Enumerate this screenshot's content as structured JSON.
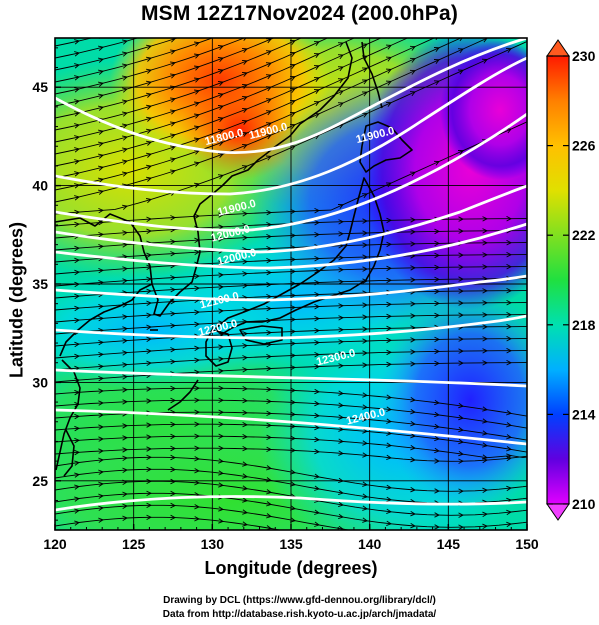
{
  "title": "MSM 12Z17Nov2024 (200.0hPa)",
  "axes": {
    "xlabel": "Longitude (degrees)",
    "ylabel": "Latitude  (degrees)",
    "xlim": [
      120,
      150
    ],
    "ylim": [
      22.5,
      47.5
    ],
    "xticks": [
      "120",
      "125",
      "130",
      "135",
      "140",
      "145",
      "150"
    ],
    "yticks": [
      "25",
      "30",
      "35",
      "40",
      "45"
    ]
  },
  "colorbar": {
    "min": 210,
    "max": 230,
    "labels": [
      "230",
      "226",
      "222",
      "218",
      "214",
      "210"
    ]
  },
  "contour_labels": [
    {
      "text": "11800.0",
      "lon": 130.8,
      "lat": 42.3
    },
    {
      "text": "11900.0",
      "lon": 133.6,
      "lat": 42.6
    },
    {
      "text": "11900.0",
      "lon": 131.6,
      "lat": 38.7
    },
    {
      "text": "11900.0",
      "lon": 140.4,
      "lat": 42.4
    },
    {
      "text": "12000.0",
      "lon": 131.2,
      "lat": 37.4
    },
    {
      "text": "12000.0",
      "lon": 131.6,
      "lat": 36.2
    },
    {
      "text": "12100.0",
      "lon": 130.5,
      "lat": 34.0
    },
    {
      "text": "12200.0",
      "lon": 130.4,
      "lat": 32.6
    },
    {
      "text": "12300.0",
      "lon": 137.9,
      "lat": 31.1
    },
    {
      "text": "12400.0",
      "lon": 139.8,
      "lat": 28.1
    }
  ],
  "credits": [
    "Drawing by DCL (https://www.gfd-dennou.org/library/dcl/)",
    "Data from http://database.rish.kyoto-u.ac.jp/arch/jmadata/"
  ],
  "colors": {
    "field_scale": [
      "#e000ff",
      "#4b00e0",
      "#0000ff",
      "#0060ff",
      "#00a8ff",
      "#00e0e0",
      "#00e898",
      "#20e020",
      "#a0e020",
      "#e0e000",
      "#ffc000",
      "#ff8000",
      "#ff2000"
    ],
    "coast": "#000000",
    "contour": "#ffffff",
    "arrow": "#000000"
  }
}
